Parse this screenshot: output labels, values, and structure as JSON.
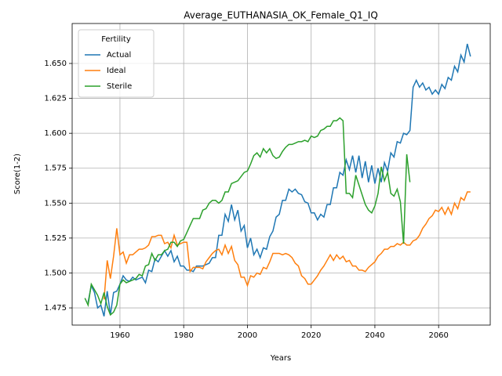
{
  "chart_data": {
    "type": "line",
    "title": "Average_EUTHANASIA_OK_Female_Q1_IQ",
    "x_label": "Years",
    "y_label": "Score(1-2)",
    "legend_title": "Fertility",
    "legend_loc": "upper left",
    "grid": true,
    "xlim": [
      1945.0,
      2076.2
    ],
    "ylim": [
      1.4627,
      1.6786
    ],
    "xticks": [
      1960,
      1980,
      2000,
      2020,
      2040,
      2060
    ],
    "yticks": [
      1.475,
      {
        "value": 1.5,
        "label": "1.500"
      },
      1.525,
      {
        "value": 1.55,
        "label": "1.550"
      },
      1.575,
      {
        "value": 1.6,
        "label": "1.600"
      },
      1.625,
      {
        "value": 1.65,
        "label": "1.650"
      }
    ],
    "x": [
      1949,
      1950,
      1951,
      1952,
      1953,
      1954,
      1955,
      1956,
      1957,
      1958,
      1959,
      1960,
      1961,
      1962,
      1963,
      1964,
      1965,
      1966,
      1967,
      1968,
      1969,
      1970,
      1971,
      1972,
      1973,
      1974,
      1975,
      1976,
      1977,
      1978,
      1979,
      1980,
      1981,
      1982,
      1983,
      1984,
      1985,
      1986,
      1987,
      1988,
      1989,
      1990,
      1991,
      1992,
      1993,
      1994,
      1995,
      1996,
      1997,
      1998,
      1999,
      2000,
      2001,
      2002,
      2003,
      2004,
      2005,
      2006,
      2007,
      2008,
      2009,
      2010,
      2011,
      2012,
      2013,
      2014,
      2015,
      2016,
      2017,
      2018,
      2019,
      2020,
      2021,
      2022,
      2023,
      2024,
      2025,
      2026,
      2027,
      2028,
      2029,
      2030,
      2031,
      2032,
      2033,
      2034,
      2035,
      2036,
      2037,
      2038,
      2039,
      2040,
      2041,
      2042,
      2043,
      2044,
      2045,
      2046,
      2047,
      2048,
      2049,
      2050,
      2051,
      2052,
      2053,
      2054,
      2055,
      2056,
      2057,
      2058,
      2059,
      2060,
      2061,
      2062,
      2063,
      2064,
      2065,
      2066,
      2067,
      2068,
      2069,
      2070
    ],
    "series": [
      {
        "name": "Actual",
        "color": "#1f77b4",
        "values": [
          null,
          1.479,
          1.491,
          1.486,
          1.475,
          1.477,
          1.469,
          1.487,
          1.47,
          1.486,
          1.487,
          1.492,
          1.498,
          1.495,
          1.494,
          1.497,
          1.495,
          1.496,
          1.497,
          1.493,
          1.502,
          1.501,
          1.51,
          1.508,
          1.512,
          1.516,
          1.512,
          1.516,
          1.508,
          1.512,
          1.505,
          1.505,
          1.502,
          1.502,
          1.501,
          1.505,
          1.505,
          1.505,
          1.506,
          1.507,
          1.511,
          1.511,
          1.527,
          1.527,
          1.542,
          1.537,
          1.549,
          1.538,
          1.545,
          1.53,
          1.534,
          1.518,
          1.525,
          1.513,
          1.517,
          1.511,
          1.518,
          1.517,
          1.526,
          1.53,
          1.54,
          1.542,
          1.552,
          1.552,
          1.56,
          1.558,
          1.56,
          1.557,
          1.556,
          1.551,
          1.55,
          1.543,
          1.543,
          1.538,
          1.542,
          1.54,
          1.549,
          1.549,
          1.561,
          1.561,
          1.572,
          1.57,
          1.581,
          1.574,
          1.584,
          1.572,
          1.584,
          1.568,
          1.58,
          1.565,
          1.577,
          1.564,
          1.575,
          1.565,
          1.579,
          1.573,
          1.586,
          1.583,
          1.594,
          1.593,
          1.6,
          1.599,
          1.602,
          1.633,
          1.638,
          1.633,
          1.636,
          1.631,
          1.633,
          1.628,
          1.631,
          1.628,
          1.635,
          1.632,
          1.64,
          1.638,
          1.648,
          1.644,
          1.656,
          1.651,
          1.664,
          1.655
        ]
      },
      {
        "name": "Ideal",
        "color": "#ff7f0e",
        "values": [
          null,
          null,
          null,
          null,
          null,
          null,
          1.481,
          1.509,
          1.496,
          1.512,
          1.532,
          1.513,
          1.515,
          1.507,
          1.513,
          1.513,
          1.515,
          1.517,
          1.517,
          1.518,
          1.52,
          1.526,
          1.526,
          1.527,
          1.527,
          1.521,
          1.522,
          1.518,
          1.527,
          1.52,
          1.521,
          1.522,
          1.522,
          1.501,
          1.504,
          1.504,
          1.504,
          1.503,
          1.508,
          1.511,
          1.514,
          1.516,
          1.517,
          1.513,
          1.52,
          1.514,
          1.519,
          1.509,
          1.506,
          1.497,
          1.497,
          1.491,
          1.498,
          1.497,
          1.5,
          1.499,
          1.504,
          1.503,
          1.508,
          1.514,
          1.514,
          1.514,
          1.513,
          1.514,
          1.513,
          1.511,
          1.507,
          1.505,
          1.498,
          1.496,
          1.492,
          1.492,
          1.495,
          1.498,
          1.502,
          1.505,
          1.509,
          1.513,
          1.509,
          1.513,
          1.51,
          1.512,
          1.508,
          1.509,
          1.505,
          1.505,
          1.502,
          1.502,
          1.501,
          1.504,
          1.506,
          1.508,
          1.512,
          1.514,
          1.517,
          1.517,
          1.519,
          1.519,
          1.521,
          1.52,
          1.522,
          1.52,
          1.52,
          1.523,
          1.524,
          1.527,
          1.532,
          1.535,
          1.539,
          1.541,
          1.545,
          1.544,
          1.547,
          1.542,
          1.547,
          1.542,
          1.55,
          1.546,
          1.554,
          1.552,
          1.558,
          1.558
        ]
      },
      {
        "name": "Sterile",
        "color": "#2ca02c",
        "values": [
          1.482,
          1.477,
          1.492,
          1.488,
          1.484,
          1.478,
          1.486,
          1.476,
          1.47,
          1.472,
          1.477,
          1.492,
          1.495,
          1.493,
          1.494,
          1.495,
          1.496,
          1.499,
          1.498,
          1.505,
          1.506,
          1.514,
          1.509,
          1.513,
          1.513,
          1.516,
          1.517,
          1.522,
          1.522,
          1.519,
          1.523,
          1.524,
          1.529,
          1.534,
          1.539,
          1.539,
          1.539,
          1.545,
          1.546,
          1.55,
          1.552,
          1.552,
          1.55,
          1.552,
          1.558,
          1.558,
          1.564,
          1.565,
          1.566,
          1.569,
          1.572,
          1.573,
          1.578,
          1.584,
          1.586,
          1.583,
          1.589,
          1.586,
          1.589,
          1.584,
          1.582,
          1.583,
          1.587,
          1.59,
          1.592,
          1.592,
          1.593,
          1.594,
          1.594,
          1.595,
          1.594,
          1.598,
          1.597,
          1.598,
          1.602,
          1.603,
          1.605,
          1.605,
          1.609,
          1.609,
          1.611,
          1.609,
          1.557,
          1.557,
          1.554,
          1.57,
          1.563,
          1.556,
          1.549,
          1.545,
          1.543,
          1.548,
          1.557,
          1.576,
          1.566,
          1.572,
          1.557,
          1.555,
          1.56,
          1.551,
          1.521,
          1.585,
          1.565,
          null,
          null,
          null,
          null,
          null,
          null,
          null,
          null,
          null,
          null,
          null,
          null,
          null,
          null,
          null,
          null,
          null,
          null,
          null
        ]
      }
    ]
  }
}
